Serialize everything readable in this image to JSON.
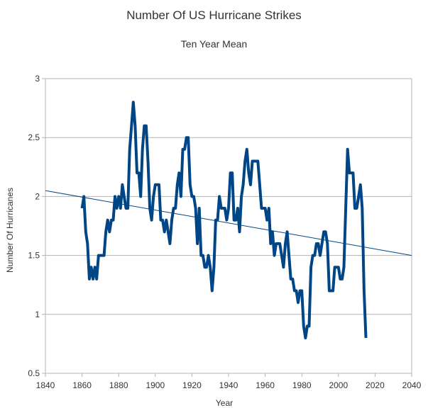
{
  "chart_data": {
    "type": "line",
    "title": "Number Of US Hurricane Strikes",
    "subtitle": "Ten Year Mean",
    "xlabel": "Year",
    "ylabel": "Number Of Hurricanes",
    "xlim": [
      1840,
      2040
    ],
    "ylim": [
      0.5,
      3
    ],
    "xticks": [
      1840,
      1860,
      1880,
      1900,
      1920,
      1940,
      1960,
      1980,
      2000,
      2020,
      2040
    ],
    "yticks": [
      0.5,
      1,
      1.5,
      2,
      2.5,
      3
    ],
    "grid": "horizontal",
    "colors": {
      "series": "#004586",
      "trend": "#004586",
      "grid": "#b3b3b3",
      "axis": "#b3b3b3"
    },
    "series": [
      {
        "name": "Ten Year Mean",
        "x": [
          1860,
          1861,
          1862,
          1863,
          1864,
          1865,
          1866,
          1867,
          1868,
          1869,
          1870,
          1871,
          1872,
          1873,
          1874,
          1875,
          1876,
          1877,
          1878,
          1879,
          1880,
          1881,
          1882,
          1883,
          1884,
          1885,
          1886,
          1887,
          1888,
          1889,
          1890,
          1891,
          1892,
          1893,
          1894,
          1895,
          1896,
          1897,
          1898,
          1899,
          1900,
          1901,
          1902,
          1903,
          1904,
          1905,
          1906,
          1907,
          1908,
          1909,
          1910,
          1911,
          1912,
          1913,
          1914,
          1915,
          1916,
          1917,
          1918,
          1919,
          1920,
          1921,
          1922,
          1923,
          1924,
          1925,
          1926,
          1927,
          1928,
          1929,
          1930,
          1931,
          1932,
          1933,
          1934,
          1935,
          1936,
          1937,
          1938,
          1939,
          1940,
          1941,
          1942,
          1943,
          1944,
          1945,
          1946,
          1947,
          1948,
          1949,
          1950,
          1951,
          1952,
          1953,
          1954,
          1955,
          1956,
          1957,
          1958,
          1959,
          1960,
          1961,
          1962,
          1963,
          1964,
          1965,
          1966,
          1967,
          1968,
          1969,
          1970,
          1971,
          1972,
          1973,
          1974,
          1975,
          1976,
          1977,
          1978,
          1979,
          1980,
          1981,
          1982,
          1983,
          1984,
          1985,
          1986,
          1987,
          1988,
          1989,
          1990,
          1991,
          1992,
          1993,
          1994,
          1995,
          1996,
          1997,
          1998,
          1999,
          2000,
          2001,
          2002,
          2003,
          2004,
          2005,
          2006,
          2007,
          2008,
          2009,
          2010,
          2011,
          2012,
          2013,
          2014,
          2015
        ],
        "values": [
          1.9,
          2.0,
          1.7,
          1.6,
          1.3,
          1.4,
          1.3,
          1.4,
          1.3,
          1.5,
          1.5,
          1.5,
          1.5,
          1.7,
          1.8,
          1.7,
          1.8,
          1.8,
          2.0,
          1.9,
          2.0,
          1.9,
          2.1,
          2.0,
          1.9,
          1.9,
          2.4,
          2.6,
          2.8,
          2.6,
          2.2,
          2.2,
          2.0,
          2.4,
          2.6,
          2.6,
          2.3,
          1.9,
          1.8,
          2.0,
          2.1,
          2.1,
          2.1,
          1.8,
          1.8,
          1.7,
          1.8,
          1.7,
          1.6,
          1.8,
          1.9,
          1.9,
          2.1,
          2.2,
          2.0,
          2.4,
          2.4,
          2.5,
          2.5,
          2.1,
          2.0,
          2.0,
          1.9,
          1.6,
          1.9,
          1.5,
          1.5,
          1.4,
          1.4,
          1.5,
          1.4,
          1.2,
          1.4,
          1.8,
          1.8,
          2.0,
          1.9,
          1.9,
          1.9,
          1.8,
          1.9,
          2.2,
          2.2,
          1.8,
          1.8,
          1.9,
          1.7,
          2.0,
          2.1,
          2.3,
          2.4,
          2.2,
          2.1,
          2.3,
          2.3,
          2.3,
          2.3,
          2.1,
          1.9,
          1.9,
          1.9,
          1.8,
          1.9,
          1.6,
          1.7,
          1.5,
          1.6,
          1.6,
          1.6,
          1.5,
          1.4,
          1.6,
          1.7,
          1.5,
          1.3,
          1.3,
          1.2,
          1.2,
          1.1,
          1.2,
          1.2,
          0.9,
          0.8,
          0.9,
          0.9,
          1.4,
          1.5,
          1.5,
          1.6,
          1.6,
          1.5,
          1.6,
          1.7,
          1.7,
          1.6,
          1.2,
          1.2,
          1.2,
          1.4,
          1.4,
          1.4,
          1.3,
          1.3,
          1.4,
          1.9,
          2.4,
          2.2,
          2.2,
          2.2,
          1.9,
          1.9,
          2.0,
          2.1,
          1.9,
          1.2,
          0.8
        ]
      }
    ],
    "trendline": {
      "x": [
        1840,
        2040
      ],
      "y": [
        2.05,
        1.5
      ]
    }
  }
}
